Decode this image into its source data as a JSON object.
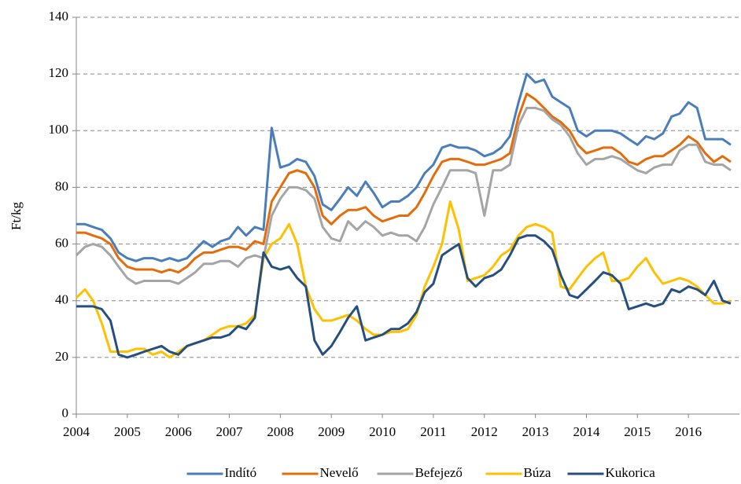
{
  "chart_data": {
    "type": "line",
    "y_label": "Ft/kg",
    "x": [
      2004,
      2004.17,
      2004.33,
      2004.5,
      2004.67,
      2004.83,
      2005,
      2005.17,
      2005.33,
      2005.5,
      2005.67,
      2005.83,
      2006,
      2006.17,
      2006.33,
      2006.5,
      2006.67,
      2006.83,
      2007,
      2007.17,
      2007.33,
      2007.5,
      2007.67,
      2007.83,
      2008,
      2008.17,
      2008.33,
      2008.5,
      2008.67,
      2008.83,
      2009,
      2009.17,
      2009.33,
      2009.5,
      2009.67,
      2009.83,
      2010,
      2010.17,
      2010.33,
      2010.5,
      2010.67,
      2010.83,
      2011,
      2011.17,
      2011.33,
      2011.5,
      2011.67,
      2011.83,
      2012,
      2012.17,
      2012.33,
      2012.5,
      2012.67,
      2012.83,
      2013,
      2013.17,
      2013.33,
      2013.5,
      2013.67,
      2013.83,
      2014,
      2014.17,
      2014.33,
      2014.5,
      2014.67,
      2014.83,
      2015,
      2015.17,
      2015.33,
      2015.5,
      2015.67,
      2015.83,
      2016,
      2016.17,
      2016.33,
      2016.5,
      2016.67,
      2016.83
    ],
    "series": [
      {
        "name": "Indító",
        "color": "#4a7ebb",
        "values": [
          67,
          67,
          66,
          65,
          62,
          57,
          55,
          54,
          55,
          55,
          54,
          55,
          54,
          55,
          58,
          61,
          59,
          61,
          62,
          66,
          63,
          66,
          65,
          101,
          87,
          88,
          90,
          89,
          84,
          74,
          72,
          76,
          80,
          77,
          82,
          78,
          73,
          75,
          75,
          77,
          80,
          85,
          88,
          94,
          95,
          94,
          94,
          93,
          91,
          92,
          94,
          98,
          110,
          120,
          117,
          118,
          112,
          110,
          108,
          100,
          98,
          100,
          100,
          100,
          99,
          97,
          95,
          98,
          97,
          99,
          105,
          106,
          110,
          108,
          97,
          97,
          97,
          95
        ]
      },
      {
        "name": "Nevelő",
        "color": "#e46c0a",
        "values": [
          64,
          64,
          63,
          62,
          60,
          55,
          52,
          51,
          51,
          51,
          50,
          51,
          50,
          52,
          55,
          57,
          57,
          58,
          59,
          59,
          58,
          61,
          60,
          75,
          80,
          85,
          86,
          85,
          80,
          70,
          67,
          70,
          72,
          72,
          73,
          70,
          68,
          69,
          70,
          70,
          73,
          78,
          84,
          89,
          90,
          90,
          89,
          88,
          88,
          89,
          90,
          92,
          105,
          113,
          111,
          108,
          105,
          103,
          100,
          95,
          92,
          93,
          94,
          94,
          92,
          89,
          88,
          90,
          91,
          91,
          93,
          95,
          98,
          96,
          92,
          89,
          91,
          89
        ]
      },
      {
        "name": "Befejező",
        "color": "#a5a5a5",
        "values": [
          56,
          59,
          60,
          59,
          56,
          52,
          48,
          46,
          47,
          47,
          47,
          47,
          46,
          48,
          50,
          53,
          53,
          54,
          54,
          52,
          55,
          56,
          55,
          70,
          76,
          80,
          80,
          79,
          76,
          66,
          62,
          61,
          68,
          65,
          68,
          66,
          63,
          64,
          63,
          63,
          61,
          66,
          74,
          80,
          86,
          86,
          86,
          85,
          70,
          86,
          86,
          88,
          102,
          108,
          108,
          107,
          104,
          102,
          98,
          92,
          88,
          90,
          90,
          91,
          90,
          88,
          86,
          85,
          87,
          88,
          88,
          93,
          95,
          95,
          89,
          88,
          88,
          86
        ]
      },
      {
        "name": "Búza",
        "color": "#ffc000",
        "values": [
          41,
          44,
          40,
          32,
          22,
          22,
          22,
          23,
          23,
          21,
          22,
          20,
          22,
          24,
          25,
          26,
          28,
          30,
          31,
          31,
          32,
          35,
          55,
          60,
          62,
          67,
          60,
          45,
          37,
          33,
          33,
          34,
          35,
          33,
          30,
          28,
          28,
          29,
          29,
          30,
          35,
          45,
          52,
          60,
          75,
          65,
          47,
          48,
          49,
          52,
          56,
          58,
          63,
          66,
          67,
          66,
          64,
          45,
          44,
          48,
          52,
          55,
          57,
          47,
          47,
          48,
          52,
          55,
          50,
          46,
          47,
          48,
          47,
          45,
          42,
          39,
          39,
          40
        ]
      },
      {
        "name": "Kukorica",
        "color": "#254f7f",
        "values": [
          38,
          38,
          38,
          37,
          33,
          21,
          20,
          21,
          22,
          23,
          24,
          22,
          21,
          24,
          25,
          26,
          27,
          27,
          28,
          31,
          30,
          34,
          57,
          52,
          51,
          52,
          48,
          45,
          26,
          21,
          24,
          29,
          34,
          38,
          26,
          27,
          28,
          30,
          30,
          32,
          36,
          43,
          46,
          56,
          58,
          60,
          48,
          45,
          48,
          49,
          51,
          56,
          62,
          63,
          63,
          61,
          58,
          49,
          42,
          41,
          44,
          47,
          50,
          49,
          46,
          37,
          38,
          39,
          38,
          39,
          44,
          43,
          45,
          44,
          42,
          47,
          40,
          39
        ]
      }
    ],
    "xlim": [
      2004,
      2017
    ],
    "xticks": [
      2004,
      2005,
      2006,
      2007,
      2008,
      2009,
      2010,
      2011,
      2012,
      2013,
      2014,
      2015,
      2016
    ],
    "ylim": [
      0,
      140
    ],
    "yticks": [
      0,
      20,
      40,
      60,
      80,
      100,
      120,
      140
    ],
    "grid": true,
    "legend": "bottom"
  }
}
